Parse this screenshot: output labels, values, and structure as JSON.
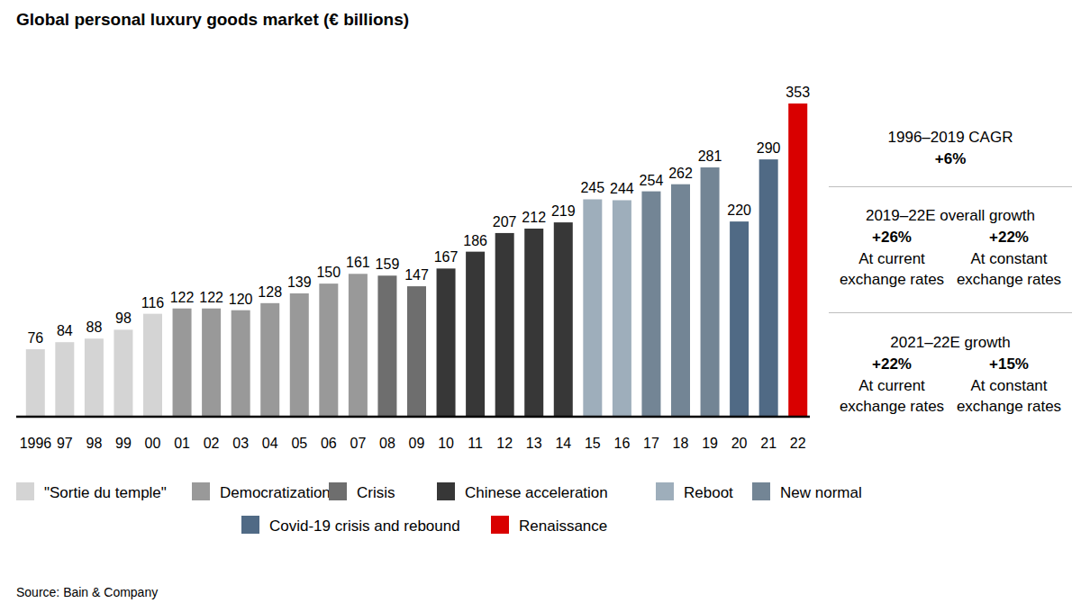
{
  "chart_data": {
    "type": "bar",
    "title": "Global personal luxury goods market (€ billions)",
    "source": "Source: Bain & Company",
    "categories": [
      "1996",
      "97",
      "98",
      "99",
      "00",
      "01",
      "02",
      "03",
      "04",
      "05",
      "06",
      "07",
      "08",
      "09",
      "10",
      "11",
      "12",
      "13",
      "14",
      "15",
      "16",
      "17",
      "18",
      "19",
      "20",
      "21",
      "22"
    ],
    "series": [
      {
        "name": "\"Sortie du temple\"",
        "color": "#d4d4d4",
        "values": [
          76,
          84,
          88,
          98,
          116,
          null,
          null,
          null,
          null,
          null,
          null,
          null,
          null,
          null,
          null,
          null,
          null,
          null,
          null,
          null,
          null,
          null,
          null,
          null,
          null,
          null,
          null
        ]
      },
      {
        "name": "Democratization",
        "color": "#999999",
        "values": [
          null,
          null,
          null,
          null,
          null,
          122,
          122,
          120,
          128,
          139,
          150,
          161,
          null,
          null,
          null,
          null,
          null,
          null,
          null,
          null,
          null,
          null,
          null,
          null,
          null,
          null,
          null
        ]
      },
      {
        "name": "Crisis",
        "color": "#6e6e6e",
        "values": [
          null,
          null,
          null,
          null,
          null,
          null,
          null,
          null,
          null,
          null,
          null,
          null,
          159,
          147,
          null,
          null,
          null,
          null,
          null,
          null,
          null,
          null,
          null,
          null,
          null,
          null,
          null
        ]
      },
      {
        "name": "Chinese acceleration",
        "color": "#373737",
        "values": [
          null,
          null,
          null,
          null,
          null,
          null,
          null,
          null,
          null,
          null,
          null,
          null,
          null,
          null,
          167,
          186,
          207,
          212,
          219,
          null,
          null,
          null,
          null,
          null,
          null,
          null,
          null
        ]
      },
      {
        "name": "Reboot",
        "color": "#9eaebb",
        "values": [
          null,
          null,
          null,
          null,
          null,
          null,
          null,
          null,
          null,
          null,
          null,
          null,
          null,
          null,
          null,
          null,
          null,
          null,
          null,
          245,
          244,
          null,
          null,
          null,
          null,
          null,
          null
        ]
      },
      {
        "name": "New normal",
        "color": "#738595",
        "values": [
          null,
          null,
          null,
          null,
          null,
          null,
          null,
          null,
          null,
          null,
          null,
          null,
          null,
          null,
          null,
          null,
          null,
          null,
          null,
          null,
          null,
          254,
          262,
          281,
          null,
          null,
          null
        ]
      },
      {
        "name": "Covid-19 crisis and rebound",
        "color": "#506a85",
        "values": [
          null,
          null,
          null,
          null,
          null,
          null,
          null,
          null,
          null,
          null,
          null,
          null,
          null,
          null,
          null,
          null,
          null,
          null,
          null,
          null,
          null,
          null,
          null,
          null,
          220,
          290,
          null
        ]
      },
      {
        "name": "Renaissance",
        "color": "#d90000",
        "values": [
          null,
          null,
          null,
          null,
          null,
          null,
          null,
          null,
          null,
          null,
          null,
          null,
          null,
          null,
          null,
          null,
          null,
          null,
          null,
          null,
          null,
          null,
          null,
          null,
          null,
          null,
          353
        ]
      }
    ],
    "ylim": [
      0,
      353
    ],
    "data_labels": true,
    "tick_labels": "x",
    "grid": false,
    "annotations": [
      {
        "title": "1996–2019 CAGR",
        "items": [
          {
            "value": "+6%"
          }
        ]
      },
      {
        "title": "2019–22E overall growth",
        "items": [
          {
            "value": "+26%",
            "label": "At current exchange rates"
          },
          {
            "value": "+22%",
            "label": "At constant exchange rates"
          }
        ]
      },
      {
        "title": "2021–22E growth",
        "items": [
          {
            "value": "+22%",
            "label": "At current exchange rates"
          },
          {
            "value": "+15%",
            "label": "At constant exchange rates"
          }
        ]
      }
    ]
  }
}
